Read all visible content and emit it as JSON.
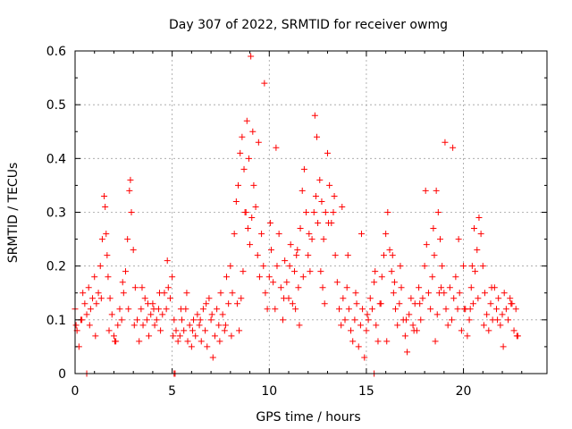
{
  "chart_data": {
    "type": "scatter",
    "title": "Day 307 of 2022, SRMTID for receiver owmg",
    "xlabel": "GPS time / hours",
    "ylabel": "SRMTID / TECUs",
    "xlim": [
      0,
      24.3
    ],
    "ylim": [
      0,
      0.6
    ],
    "xticks": [
      0,
      5,
      10,
      15,
      20
    ],
    "xtick_labels": [
      "0",
      "5",
      "10",
      "15",
      "20"
    ],
    "yticks": [
      0,
      0.1,
      0.2,
      0.3,
      0.4,
      0.5,
      0.6
    ],
    "ytick_labels": [
      "0",
      "0.1",
      "0.2",
      "0.3",
      "0.4",
      "0.5",
      "0.6"
    ],
    "grid": true,
    "marker": "plus",
    "series": [
      {
        "name": "SRMTID",
        "color": "#ff0000",
        "x": [
          0.0,
          0.1,
          0.2,
          0.3,
          0.4,
          0.5,
          0.6,
          0.7,
          0.8,
          0.9,
          1.0,
          1.1,
          1.2,
          1.3,
          1.4,
          1.5,
          1.55,
          1.6,
          1.65,
          1.7,
          1.8,
          1.9,
          2.0,
          2.1,
          2.2,
          2.3,
          2.4,
          2.5,
          2.6,
          2.7,
          2.8,
          2.85,
          2.9,
          3.0,
          3.1,
          3.2,
          3.3,
          3.4,
          3.5,
          3.6,
          3.7,
          3.8,
          3.9,
          4.0,
          4.1,
          4.2,
          4.3,
          4.4,
          4.5,
          4.6,
          4.7,
          4.8,
          4.9,
          5.0,
          5.1,
          5.2,
          5.3,
          5.4,
          5.5,
          5.6,
          5.7,
          5.8,
          5.9,
          6.0,
          6.1,
          6.2,
          6.3,
          6.4,
          6.5,
          6.6,
          6.7,
          6.8,
          6.9,
          7.0,
          7.1,
          7.2,
          7.3,
          7.4,
          7.5,
          7.6,
          7.7,
          7.8,
          7.9,
          8.0,
          8.1,
          8.2,
          8.3,
          8.4,
          8.5,
          8.6,
          8.7,
          8.8,
          8.9,
          9.0,
          9.1,
          9.2,
          9.3,
          9.4,
          9.5,
          9.6,
          9.7,
          9.8,
          9.9,
          10.0,
          10.1,
          10.2,
          10.3,
          10.4,
          10.5,
          10.6,
          10.7,
          10.8,
          10.9,
          11.0,
          11.1,
          11.2,
          11.3,
          11.4,
          11.5,
          11.6,
          11.7,
          11.8,
          11.9,
          12.0,
          12.1,
          12.2,
          12.3,
          12.4,
          12.5,
          12.6,
          12.7,
          12.8,
          12.9,
          13.0,
          13.1,
          13.2,
          13.3,
          13.4,
          13.5,
          13.6,
          13.7,
          13.8,
          13.9,
          14.0,
          14.1,
          14.2,
          14.3,
          14.4,
          14.5,
          14.6,
          14.7,
          14.8,
          14.9,
          15.0,
          15.1,
          15.2,
          15.3,
          15.4,
          15.5,
          15.6,
          15.7,
          15.8,
          15.9,
          16.0,
          16.1,
          16.2,
          16.3,
          16.4,
          16.5,
          16.6,
          16.7,
          16.8,
          16.9,
          17.0,
          17.1,
          17.2,
          17.3,
          17.4,
          17.5,
          17.6,
          17.7,
          17.8,
          17.9,
          18.0,
          18.1,
          18.2,
          18.3,
          18.4,
          18.5,
          18.6,
          18.7,
          18.8,
          18.9,
          19.0,
          19.1,
          19.2,
          19.3,
          19.4,
          19.5,
          19.6,
          19.7,
          19.8,
          19.9,
          20.0,
          20.1,
          20.2,
          20.3,
          20.4,
          20.5,
          20.6,
          20.7,
          20.8,
          20.9,
          21.0,
          21.1,
          21.2,
          21.3,
          21.4,
          21.5,
          21.6,
          21.7,
          21.8,
          21.9,
          22.0,
          22.1,
          22.2,
          22.3,
          22.4,
          22.5,
          22.6,
          22.7,
          22.8,
          0.05,
          0.35,
          0.75,
          1.05,
          1.35,
          1.75,
          2.05,
          2.45,
          2.75,
          3.05,
          3.45,
          3.75,
          4.05,
          4.35,
          4.75,
          5.05,
          5.45,
          5.75,
          6.05,
          6.45,
          6.75,
          7.05,
          7.45,
          7.75,
          8.05,
          8.35,
          8.45,
          8.55,
          8.65,
          8.75,
          8.85,
          8.95,
          9.05,
          9.15,
          9.45,
          9.75,
          10.05,
          10.35,
          10.75,
          11.05,
          11.35,
          11.45,
          11.55,
          11.75,
          12.05,
          12.35,
          12.45,
          12.65,
          12.75,
          12.85,
          13.05,
          13.35,
          13.75,
          14.05,
          14.45,
          14.75,
          15.05,
          15.45,
          15.75,
          16.05,
          16.35,
          16.45,
          16.75,
          17.05,
          17.45,
          17.75,
          18.05,
          18.45,
          18.55,
          18.65,
          18.75,
          18.85,
          19.05,
          19.45,
          19.75,
          20.05,
          20.35,
          20.45,
          20.55,
          20.75,
          21.05,
          21.45,
          21.75,
          22.05,
          22.45,
          22.75,
          0.6,
          5.1,
          5.15,
          15.4
        ],
        "y": [
          0.12,
          0.08,
          0.05,
          0.1,
          0.15,
          0.13,
          0.11,
          0.16,
          0.12,
          0.14,
          0.18,
          0.13,
          0.15,
          0.2,
          0.25,
          0.33,
          0.31,
          0.26,
          0.22,
          0.18,
          0.14,
          0.11,
          0.07,
          0.06,
          0.09,
          0.12,
          0.1,
          0.15,
          0.19,
          0.25,
          0.34,
          0.36,
          0.3,
          0.23,
          0.16,
          0.1,
          0.06,
          0.12,
          0.09,
          0.14,
          0.1,
          0.07,
          0.11,
          0.13,
          0.09,
          0.1,
          0.12,
          0.08,
          0.11,
          0.15,
          0.12,
          0.16,
          0.14,
          0.18,
          0.1,
          0.08,
          0.06,
          0.07,
          0.1,
          0.08,
          0.12,
          0.06,
          0.09,
          0.05,
          0.1,
          0.07,
          0.11,
          0.09,
          0.06,
          0.12,
          0.08,
          0.05,
          0.14,
          0.1,
          0.03,
          0.07,
          0.12,
          0.09,
          0.15,
          0.11,
          0.08,
          0.18,
          0.13,
          0.2,
          0.15,
          0.26,
          0.32,
          0.35,
          0.41,
          0.44,
          0.38,
          0.3,
          0.27,
          0.24,
          0.29,
          0.35,
          0.31,
          0.22,
          0.18,
          0.26,
          0.2,
          0.15,
          0.12,
          0.18,
          0.23,
          0.17,
          0.12,
          0.2,
          0.26,
          0.16,
          0.1,
          0.21,
          0.17,
          0.14,
          0.24,
          0.13,
          0.19,
          0.22,
          0.16,
          0.27,
          0.34,
          0.38,
          0.3,
          0.22,
          0.19,
          0.25,
          0.3,
          0.33,
          0.28,
          0.36,
          0.32,
          0.25,
          0.3,
          0.41,
          0.35,
          0.28,
          0.3,
          0.22,
          0.17,
          0.12,
          0.09,
          0.14,
          0.1,
          0.16,
          0.12,
          0.08,
          0.06,
          0.1,
          0.13,
          0.05,
          0.09,
          0.12,
          0.03,
          0.08,
          0.1,
          0.14,
          0.12,
          0.17,
          0.09,
          0.06,
          0.13,
          0.18,
          0.22,
          0.26,
          0.3,
          0.23,
          0.19,
          0.15,
          0.12,
          0.09,
          0.13,
          0.16,
          0.1,
          0.07,
          0.04,
          0.11,
          0.14,
          0.09,
          0.13,
          0.08,
          0.16,
          0.1,
          0.14,
          0.2,
          0.24,
          0.15,
          0.12,
          0.18,
          0.22,
          0.34,
          0.3,
          0.25,
          0.2,
          0.15,
          0.12,
          0.09,
          0.16,
          0.1,
          0.14,
          0.18,
          0.12,
          0.15,
          0.08,
          0.2,
          0.12,
          0.07,
          0.1,
          0.16,
          0.13,
          0.19,
          0.23,
          0.29,
          0.26,
          0.2,
          0.15,
          0.11,
          0.08,
          0.13,
          0.1,
          0.16,
          0.12,
          0.14,
          0.09,
          0.11,
          0.15,
          0.12,
          0.1,
          0.14,
          0.13,
          0.08,
          0.12,
          0.07,
          0.09,
          0.1,
          0.09,
          0.07,
          0.14,
          0.08,
          0.06,
          0.17,
          0.12,
          0.09,
          0.16,
          0.13,
          0.12,
          0.15,
          0.21,
          0.07,
          0.12,
          0.15,
          0.08,
          0.1,
          0.13,
          0.11,
          0.06,
          0.09,
          0.07,
          0.13,
          0.08,
          0.14,
          0.19,
          0.3,
          0.47,
          0.4,
          0.59,
          0.45,
          0.43,
          0.54,
          0.28,
          0.42,
          0.14,
          0.2,
          0.12,
          0.23,
          0.09,
          0.18,
          0.26,
          0.48,
          0.44,
          0.19,
          0.16,
          0.13,
          0.28,
          0.33,
          0.31,
          0.22,
          0.15,
          0.26,
          0.11,
          0.19,
          0.13,
          0.06,
          0.22,
          0.17,
          0.2,
          0.1,
          0.08,
          0.13,
          0.34,
          0.27,
          0.06,
          0.11,
          0.15,
          0.16,
          0.43,
          0.42,
          0.25,
          0.12,
          0.12,
          0.2,
          0.27,
          0.14,
          0.09,
          0.16,
          0.1,
          0.05,
          0.13,
          0.07,
          0.0,
          0.0,
          0.0,
          0.0
        ]
      }
    ]
  }
}
